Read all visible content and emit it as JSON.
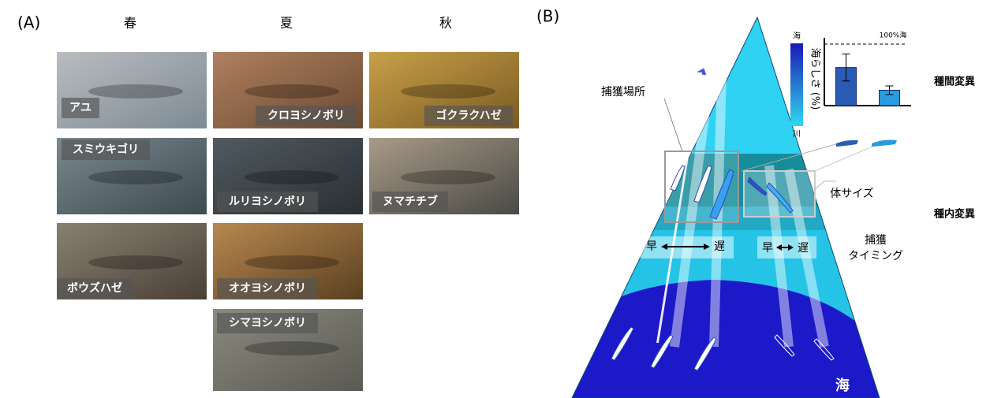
{
  "panel_a": {
    "label": "(A)",
    "seasons": [
      "春",
      "夏",
      "秋"
    ],
    "photos": [
      {
        "label": "アユ"
      },
      {
        "label": "クロヨシノボリ"
      },
      {
        "label": "ゴクラクハゼ"
      },
      {
        "label": "スミウキゴリ"
      },
      {
        "label": "ルリヨシノボリ"
      },
      {
        "label": "ヌマチチブ"
      },
      {
        "label": "ボウズハゼ"
      },
      {
        "label": "オオヨシノボリ"
      },
      {
        "label": "シマヨシノボリ"
      }
    ]
  },
  "panel_b": {
    "label": "(B)",
    "river": "川",
    "sea": "海",
    "capture_site": "捕獲場所",
    "body_size": "体サイズ",
    "capture_timing": [
      "捕獲",
      "タイミング"
    ],
    "timing_left": {
      "early": "早",
      "late": "遅"
    },
    "timing_right": {
      "early": "早",
      "late": "遅"
    },
    "interspecific": "種間変異",
    "intraspecific": "種内変異",
    "colorbar": {
      "top": "海",
      "bottom": "川"
    }
  },
  "chart_data": {
    "type": "bar",
    "y_label": "海らしさ (%)",
    "reference_label": "100%海",
    "categories": [
      null,
      null
    ],
    "values": [
      62,
      25
    ],
    "errors": [
      22,
      7
    ],
    "colors": [
      "#2a5bb5",
      "#2b9be0"
    ],
    "ylim": [
      0,
      100
    ]
  }
}
